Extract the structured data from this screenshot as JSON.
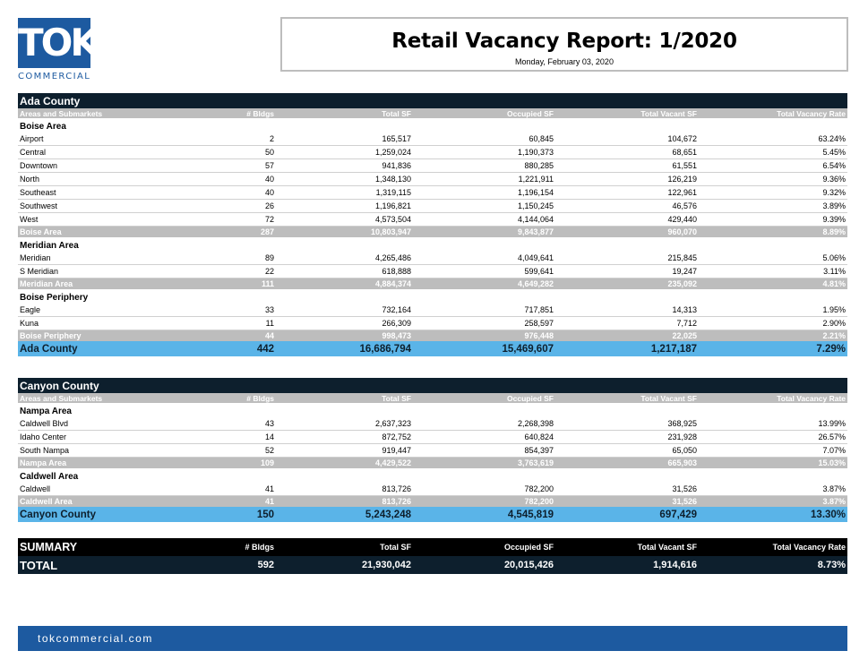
{
  "logo": {
    "mark": "TOK",
    "sub": "COMMERCIAL"
  },
  "report": {
    "title": "Retail Vacancy Report:  1/2020",
    "date": "Monday, February 03, 2020"
  },
  "columns": [
    "Areas and Submarkets",
    "# Bldgs",
    "Total SF",
    "Occupied SF",
    "Total Vacant SF",
    "Total Vacancy Rate"
  ],
  "ada": {
    "name": "Ada County",
    "areas": [
      {
        "title": "Boise Area",
        "rows": [
          [
            "Airport",
            "2",
            "165,517",
            "60,845",
            "104,672",
            "63.24%"
          ],
          [
            "Central",
            "50",
            "1,259,024",
            "1,190,373",
            "68,651",
            "5.45%"
          ],
          [
            "Downtown",
            "57",
            "941,836",
            "880,285",
            "61,551",
            "6.54%"
          ],
          [
            "North",
            "40",
            "1,348,130",
            "1,221,911",
            "126,219",
            "9.36%"
          ],
          [
            "Southeast",
            "40",
            "1,319,115",
            "1,196,154",
            "122,961",
            "9.32%"
          ],
          [
            "Southwest",
            "26",
            "1,196,821",
            "1,150,245",
            "46,576",
            "3.89%"
          ],
          [
            "West",
            "72",
            "4,573,504",
            "4,144,064",
            "429,440",
            "9.39%"
          ]
        ],
        "total": [
          "Boise Area",
          "287",
          "10,803,947",
          "9,843,877",
          "960,070",
          "8.89%"
        ]
      },
      {
        "title": "Meridian Area",
        "rows": [
          [
            "Meridian",
            "89",
            "4,265,486",
            "4,049,641",
            "215,845",
            "5.06%"
          ],
          [
            "S Meridian",
            "22",
            "618,888",
            "599,641",
            "19,247",
            "3.11%"
          ]
        ],
        "total": [
          "Meridian Area",
          "111",
          "4,884,374",
          "4,649,282",
          "235,092",
          "4.81%"
        ]
      },
      {
        "title": "Boise Periphery",
        "rows": [
          [
            "Eagle",
            "33",
            "732,164",
            "717,851",
            "14,313",
            "1.95%"
          ],
          [
            "Kuna",
            "11",
            "266,309",
            "258,597",
            "7,712",
            "2.90%"
          ]
        ],
        "total": [
          "Boise Periphery",
          "44",
          "998,473",
          "976,448",
          "22,025",
          "2.21%"
        ]
      }
    ],
    "total": [
      "Ada County",
      "442",
      "16,686,794",
      "15,469,607",
      "1,217,187",
      "7.29%"
    ]
  },
  "canyon": {
    "name": "Canyon County",
    "areas": [
      {
        "title": "Nampa Area",
        "rows": [
          [
            "Caldwell Blvd",
            "43",
            "2,637,323",
            "2,268,398",
            "368,925",
            "13.99%"
          ],
          [
            "Idaho Center",
            "14",
            "872,752",
            "640,824",
            "231,928",
            "26.57%"
          ],
          [
            "South Nampa",
            "52",
            "919,447",
            "854,397",
            "65,050",
            "7.07%"
          ]
        ],
        "total": [
          "Nampa Area",
          "109",
          "4,429,522",
          "3,763,619",
          "665,903",
          "15.03%"
        ]
      },
      {
        "title": "Caldwell Area",
        "rows": [
          [
            "Caldwell",
            "41",
            "813,726",
            "782,200",
            "31,526",
            "3.87%"
          ]
        ],
        "total": [
          "Caldwell Area",
          "41",
          "813,726",
          "782,200",
          "31,526",
          "3.87%"
        ]
      }
    ],
    "total": [
      "Canyon County",
      "150",
      "5,243,248",
      "4,545,819",
      "697,429",
      "13.30%"
    ]
  },
  "summary": {
    "header": [
      "SUMMARY",
      "# Bldgs",
      "Total SF",
      "Occupied SF",
      "Total Vacant SF",
      "Total Vacancy Rate"
    ],
    "total": [
      "TOTAL",
      "592",
      "21,930,042",
      "20,015,426",
      "1,914,616",
      "8.73%"
    ]
  },
  "footer": {
    "url": "tokcommercial.com"
  },
  "colors": {
    "brand_blue": "#1d5aa0",
    "header_dark": "#0d1f2d",
    "county_total": "#5ab4e8",
    "gray": "#bdbdbd"
  }
}
